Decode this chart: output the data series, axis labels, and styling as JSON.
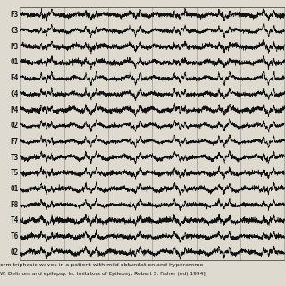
{
  "channels": [
    "F3",
    "C3",
    "P3",
    "O1",
    "F4",
    "C4",
    "P4",
    "O2",
    "F7",
    "T3",
    "T5",
    "O1",
    "F8",
    "T4",
    "T6",
    "O2"
  ],
  "n_channels": 16,
  "duration": 10.0,
  "fs": 256,
  "background_color": "#dedad0",
  "eeg_color": "#111111",
  "grid_color": "#666666",
  "caption_line1": "orm triphasic waves in a patient with mild obtundation and hyperammo",
  "caption_line2": "W. Delirium and epilepsy. In: Imitators of Epilepsy, Robert S. Fisher (ed) 1994]",
  "n_vertical_lines": 6,
  "label_fontsize": 5.5,
  "caption_fontsize": 4.5
}
